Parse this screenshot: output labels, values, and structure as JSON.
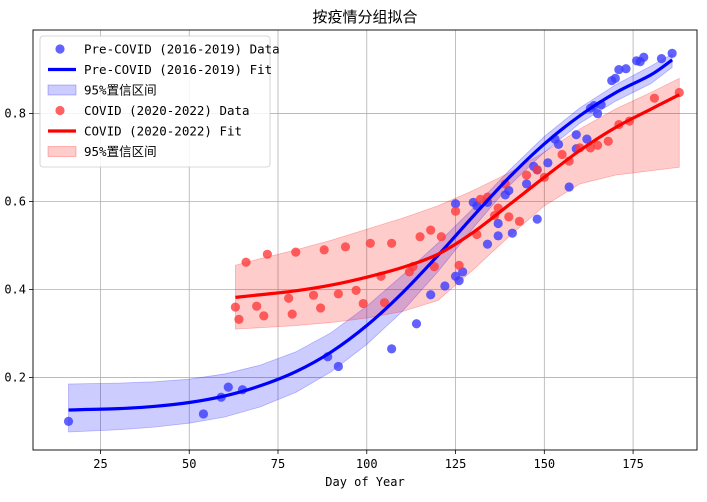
{
  "chart_data": {
    "type": "scatter",
    "title": "按疫情分组拟合",
    "xlabel": "Day of Year",
    "ylabel": "",
    "xlim": [
      6,
      193
    ],
    "ylim": [
      0.035,
      0.99
    ],
    "xticks": [
      25,
      50,
      75,
      100,
      125,
      150,
      175
    ],
    "yticks": [
      0.2,
      0.4,
      0.6,
      0.8
    ],
    "grid": true,
    "legend_position": "top-left",
    "series": [
      {
        "name": "Pre-COVID (2016-2019) Data",
        "kind": "scatter",
        "color": "#3b3bff",
        "points": [
          [
            16,
            0.1
          ],
          [
            54,
            0.117
          ],
          [
            59,
            0.155
          ],
          [
            61,
            0.178
          ],
          [
            65,
            0.172
          ],
          [
            89,
            0.247
          ],
          [
            92,
            0.225
          ],
          [
            107,
            0.265
          ],
          [
            114,
            0.322
          ],
          [
            118,
            0.388
          ],
          [
            122,
            0.408
          ],
          [
            125,
            0.595
          ],
          [
            125,
            0.43
          ],
          [
            126,
            0.42
          ],
          [
            127,
            0.44
          ],
          [
            130,
            0.598
          ],
          [
            131,
            0.59
          ],
          [
            134,
            0.598
          ],
          [
            134,
            0.503
          ],
          [
            137,
            0.522
          ],
          [
            137,
            0.55
          ],
          [
            139,
            0.615
          ],
          [
            140,
            0.625
          ],
          [
            141,
            0.528
          ],
          [
            145,
            0.64
          ],
          [
            147,
            0.68
          ],
          [
            148,
            0.672
          ],
          [
            148,
            0.56
          ],
          [
            151,
            0.688
          ],
          [
            153,
            0.742
          ],
          [
            154,
            0.73
          ],
          [
            157,
            0.633
          ],
          [
            159,
            0.72
          ],
          [
            159,
            0.752
          ],
          [
            162,
            0.742
          ],
          [
            163,
            0.812
          ],
          [
            164,
            0.818
          ],
          [
            165,
            0.8
          ],
          [
            166,
            0.82
          ],
          [
            169,
            0.875
          ],
          [
            170,
            0.88
          ],
          [
            171,
            0.9
          ],
          [
            173,
            0.902
          ],
          [
            176,
            0.92
          ],
          [
            177,
            0.918
          ],
          [
            178,
            0.928
          ],
          [
            183,
            0.925
          ],
          [
            186,
            0.937
          ]
        ]
      },
      {
        "name": "Pre-COVID (2016-2019) Fit",
        "kind": "line",
        "color": "#0000ff",
        "points": [
          [
            16,
            0.126
          ],
          [
            30,
            0.129
          ],
          [
            40,
            0.134
          ],
          [
            50,
            0.143
          ],
          [
            60,
            0.158
          ],
          [
            70,
            0.181
          ],
          [
            80,
            0.213
          ],
          [
            90,
            0.258
          ],
          [
            100,
            0.318
          ],
          [
            110,
            0.392
          ],
          [
            120,
            0.477
          ],
          [
            130,
            0.567
          ],
          [
            140,
            0.654
          ],
          [
            150,
            0.731
          ],
          [
            160,
            0.795
          ],
          [
            170,
            0.847
          ],
          [
            180,
            0.888
          ],
          [
            186,
            0.922
          ]
        ]
      },
      {
        "name": "95%置信区间",
        "kind": "band",
        "color": "#0000ff",
        "upper": [
          [
            16,
            0.185
          ],
          [
            30,
            0.187
          ],
          [
            40,
            0.19
          ],
          [
            50,
            0.196
          ],
          [
            60,
            0.208
          ],
          [
            70,
            0.228
          ],
          [
            80,
            0.258
          ],
          [
            90,
            0.302
          ],
          [
            100,
            0.362
          ],
          [
            110,
            0.432
          ],
          [
            120,
            0.505
          ],
          [
            130,
            0.585
          ],
          [
            140,
            0.67
          ],
          [
            150,
            0.748
          ],
          [
            160,
            0.813
          ],
          [
            170,
            0.865
          ],
          [
            180,
            0.908
          ],
          [
            186,
            0.935
          ]
        ],
        "lower": [
          [
            16,
            0.076
          ],
          [
            30,
            0.081
          ],
          [
            40,
            0.087
          ],
          [
            50,
            0.096
          ],
          [
            60,
            0.11
          ],
          [
            70,
            0.133
          ],
          [
            80,
            0.166
          ],
          [
            90,
            0.213
          ],
          [
            100,
            0.275
          ],
          [
            110,
            0.35
          ],
          [
            120,
            0.44
          ],
          [
            130,
            0.54
          ],
          [
            140,
            0.635
          ],
          [
            150,
            0.712
          ],
          [
            160,
            0.778
          ],
          [
            170,
            0.828
          ],
          [
            180,
            0.868
          ],
          [
            186,
            0.905
          ]
        ]
      },
      {
        "name": "COVID (2020-2022) Data",
        "kind": "scatter",
        "color": "#ff3b3b",
        "points": [
          [
            63,
            0.36
          ],
          [
            64,
            0.332
          ],
          [
            66,
            0.462
          ],
          [
            69,
            0.362
          ],
          [
            71,
            0.34
          ],
          [
            72,
            0.48
          ],
          [
            78,
            0.38
          ],
          [
            79,
            0.344
          ],
          [
            80,
            0.485
          ],
          [
            85,
            0.387
          ],
          [
            87,
            0.358
          ],
          [
            88,
            0.49
          ],
          [
            92,
            0.39
          ],
          [
            94,
            0.497
          ],
          [
            97,
            0.398
          ],
          [
            99,
            0.368
          ],
          [
            101,
            0.505
          ],
          [
            104,
            0.43
          ],
          [
            105,
            0.37
          ],
          [
            107,
            0.505
          ],
          [
            112,
            0.44
          ],
          [
            113,
            0.452
          ],
          [
            115,
            0.52
          ],
          [
            118,
            0.535
          ],
          [
            119,
            0.452
          ],
          [
            121,
            0.52
          ],
          [
            125,
            0.578
          ],
          [
            126,
            0.455
          ],
          [
            131,
            0.525
          ],
          [
            132,
            0.605
          ],
          [
            134,
            0.61
          ],
          [
            136,
            0.568
          ],
          [
            137,
            0.585
          ],
          [
            139,
            0.64
          ],
          [
            140,
            0.565
          ],
          [
            143,
            0.555
          ],
          [
            145,
            0.66
          ],
          [
            148,
            0.672
          ],
          [
            150,
            0.655
          ],
          [
            155,
            0.707
          ],
          [
            157,
            0.692
          ],
          [
            160,
            0.722
          ],
          [
            163,
            0.722
          ],
          [
            165,
            0.728
          ],
          [
            168,
            0.737
          ],
          [
            171,
            0.775
          ],
          [
            174,
            0.783
          ],
          [
            181,
            0.835
          ],
          [
            188,
            0.848
          ]
        ]
      },
      {
        "name": "COVID (2020-2022) Fit",
        "kind": "line",
        "color": "#ff0000",
        "points": [
          [
            63,
            0.382
          ],
          [
            70,
            0.388
          ],
          [
            80,
            0.397
          ],
          [
            90,
            0.41
          ],
          [
            100,
            0.428
          ],
          [
            110,
            0.45
          ],
          [
            120,
            0.48
          ],
          [
            130,
            0.53
          ],
          [
            140,
            0.592
          ],
          [
            150,
            0.655
          ],
          [
            160,
            0.716
          ],
          [
            170,
            0.768
          ],
          [
            180,
            0.81
          ],
          [
            188,
            0.843
          ]
        ]
      },
      {
        "name": "95%置信区间",
        "kind": "band",
        "color": "#ff0000",
        "upper": [
          [
            63,
            0.455
          ],
          [
            70,
            0.47
          ],
          [
            80,
            0.49
          ],
          [
            90,
            0.512
          ],
          [
            100,
            0.537
          ],
          [
            110,
            0.562
          ],
          [
            120,
            0.59
          ],
          [
            130,
            0.625
          ],
          [
            140,
            0.665
          ],
          [
            150,
            0.712
          ],
          [
            160,
            0.765
          ],
          [
            170,
            0.81
          ],
          [
            180,
            0.848
          ],
          [
            188,
            0.88
          ]
        ],
        "lower": [
          [
            63,
            0.31
          ],
          [
            70,
            0.313
          ],
          [
            80,
            0.318
          ],
          [
            90,
            0.325
          ],
          [
            100,
            0.335
          ],
          [
            110,
            0.35
          ],
          [
            120,
            0.375
          ],
          [
            130,
            0.445
          ],
          [
            140,
            0.52
          ],
          [
            150,
            0.59
          ],
          [
            160,
            0.64
          ],
          [
            170,
            0.66
          ],
          [
            180,
            0.67
          ],
          [
            188,
            0.678
          ]
        ]
      }
    ]
  }
}
